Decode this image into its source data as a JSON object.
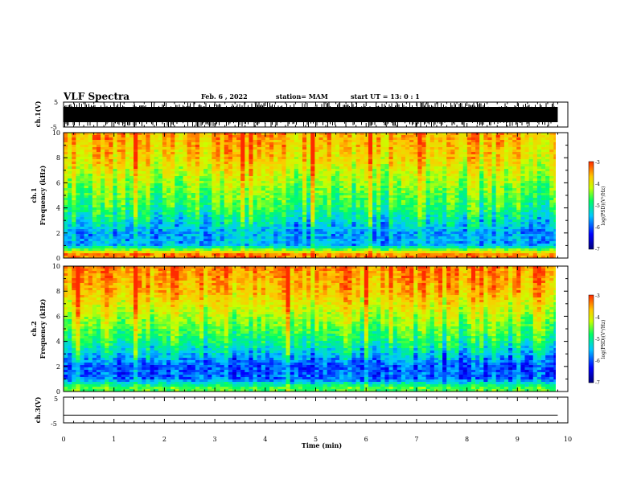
{
  "header": {
    "title": "VLF Spectra",
    "date": "Feb. 6 , 2022",
    "station": "station= MAM",
    "start": "start  UT  =   13: 0  : 1"
  },
  "chart_data": [
    {
      "type": "line",
      "panel": "waveform-ch1",
      "ylabel": "ch.1(V)",
      "ylim": [
        -5,
        5
      ],
      "yticks": [
        "5",
        "-5"
      ],
      "description": "dense black waveform filling range",
      "trace_color": "#000000"
    },
    {
      "type": "heatmap",
      "panel": "spectrogram-ch1",
      "ylabel": "ch.1\nFrequency (kHz)",
      "ylim": [
        0,
        10
      ],
      "yticks": [
        "0",
        "2",
        "4",
        "6",
        "8",
        "10"
      ],
      "xlim": [
        0,
        9.8
      ],
      "colorbar": {
        "label": "log(PSD)(V²/Hz)",
        "ticks": [
          "-3",
          "-4",
          "-5",
          "-6",
          "-7"
        ],
        "range": [
          -7,
          -3
        ]
      },
      "level_by_frequency_kHz": [
        {
          "f": 0.3,
          "log_psd": -3.4
        },
        {
          "f": 1,
          "log_psd": -5.7
        },
        {
          "f": 2,
          "log_psd": -5.8
        },
        {
          "f": 4,
          "log_psd": -5.0
        },
        {
          "f": 6,
          "log_psd": -4.5
        },
        {
          "f": 8,
          "log_psd": -3.9
        },
        {
          "f": 10,
          "log_psd": -3.6
        }
      ]
    },
    {
      "type": "heatmap",
      "panel": "spectrogram-ch2",
      "ylabel": "ch.2\nFrequency (kHz)",
      "ylim": [
        0,
        10
      ],
      "yticks": [
        "0",
        "2",
        "4",
        "6",
        "8",
        "10"
      ],
      "xlim": [
        0,
        9.8
      ],
      "colorbar": {
        "label": "log(PSD)(V²/Hz)",
        "ticks": [
          "-3",
          "-4",
          "-5",
          "-6",
          "-7"
        ],
        "range": [
          -7,
          -3
        ]
      },
      "level_by_frequency_kHz": [
        {
          "f": 0.3,
          "log_psd": -4.8
        },
        {
          "f": 1,
          "log_psd": -6.0
        },
        {
          "f": 2,
          "log_psd": -6.1
        },
        {
          "f": 4,
          "log_psd": -5.1
        },
        {
          "f": 6,
          "log_psd": -4.4
        },
        {
          "f": 8,
          "log_psd": -3.7
        },
        {
          "f": 10,
          "log_psd": -3.4
        }
      ]
    },
    {
      "type": "line",
      "panel": "waveform-ch3",
      "ylabel": "ch.3(V)",
      "ylim": [
        -5,
        5
      ],
      "yticks": [
        "5",
        "0",
        "-5"
      ],
      "values": [
        -2,
        -2
      ],
      "x": [
        0,
        9.8
      ],
      "trace_color": "#000000"
    }
  ],
  "xaxis": {
    "label": "Time  (min)",
    "xlim": [
      0,
      10
    ],
    "ticks": [
      "0",
      "1",
      "2",
      "3",
      "4",
      "5",
      "6",
      "7",
      "8",
      "9",
      "10"
    ]
  },
  "colors": {
    "colormap": [
      "#00007a",
      "#0000ff",
      "#00c8ff",
      "#00ff64",
      "#c8ff00",
      "#ffc800",
      "#ff2a00"
    ]
  }
}
